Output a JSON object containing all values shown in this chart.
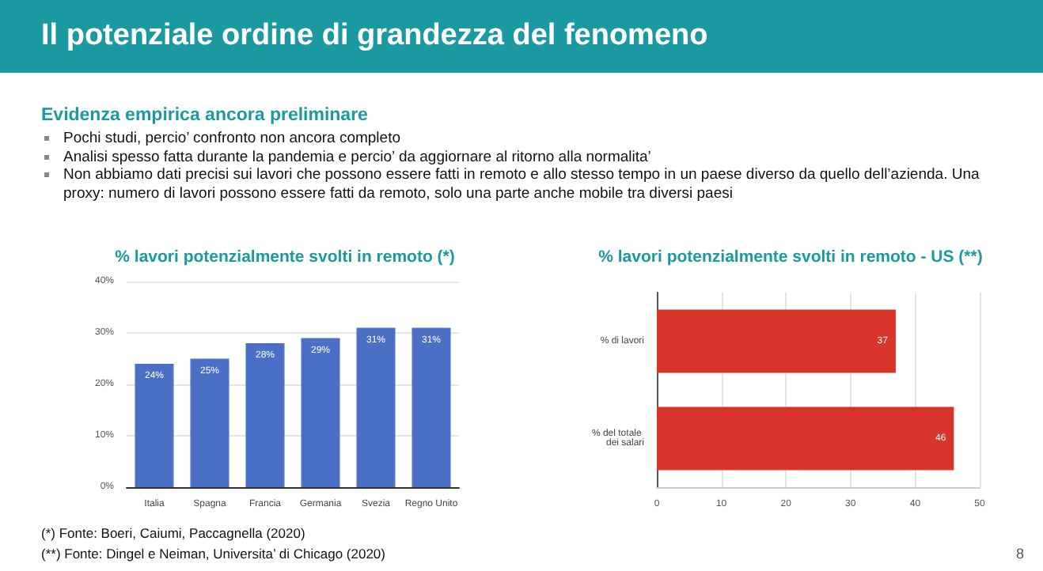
{
  "chart_data": [
    {
      "type": "other",
      "title": "Il potenziale ordine di grandezza del fenomeno",
      "subtitle": "Evidenza empirica ancora preliminare",
      "annotations": [
        "Pochi studi, percio’ confronto non ancora completo",
        "Analisi spesso fatta durante la pandemia e percio’ da aggiornare al ritorno alla normalita’",
        "Non abbiamo dati precisi sui lavori che possono essere fatti in remoto e allo stesso tempo in un paese diverso da quello dell’azienda. Una proxy: numero di lavori possono essere fatti da remoto, solo una parte anche mobile tra diversi paesi",
        "(*) Fonte: Boeri, Caiumi, Paccagnella (2020)",
        "(**) Fonte: Dingel e Neiman, Universita’ di Chicago (2020)",
        "8"
      ]
    },
    {
      "type": "bar",
      "title": "% lavori potenzialmente svolti in remoto (*)",
      "categories": [
        "Italia",
        "Spagna",
        "Francia",
        "Germania",
        "Svezia",
        "Regno Unito"
      ],
      "values": [
        24,
        25,
        28,
        29,
        31,
        31
      ],
      "value_labels": [
        "24%",
        "25%",
        "28%",
        "29%",
        "31%",
        "31%"
      ],
      "color": "#4a6fc4",
      "ylim": [
        0,
        40
      ],
      "yticks": [
        {
          "value": 0,
          "label": "0%"
        },
        {
          "value": 10,
          "label": "10%"
        },
        {
          "value": 20,
          "label": "20%"
        },
        {
          "value": 30,
          "label": "30%"
        },
        {
          "value": 40,
          "label": "40%"
        }
      ],
      "grid": "y"
    },
    {
      "type": "bar",
      "orientation": "horizontal",
      "title": "% lavori potenzialmente svolti in remoto - US (**)",
      "categories": [
        "% di lavori",
        "% del totale dei salari"
      ],
      "values": [
        37,
        46
      ],
      "data_labels": true,
      "color": "#d9342b",
      "xlim": [
        0,
        50
      ],
      "xticks": [
        0,
        10,
        20,
        30,
        40,
        50
      ],
      "grid": "x"
    }
  ]
}
